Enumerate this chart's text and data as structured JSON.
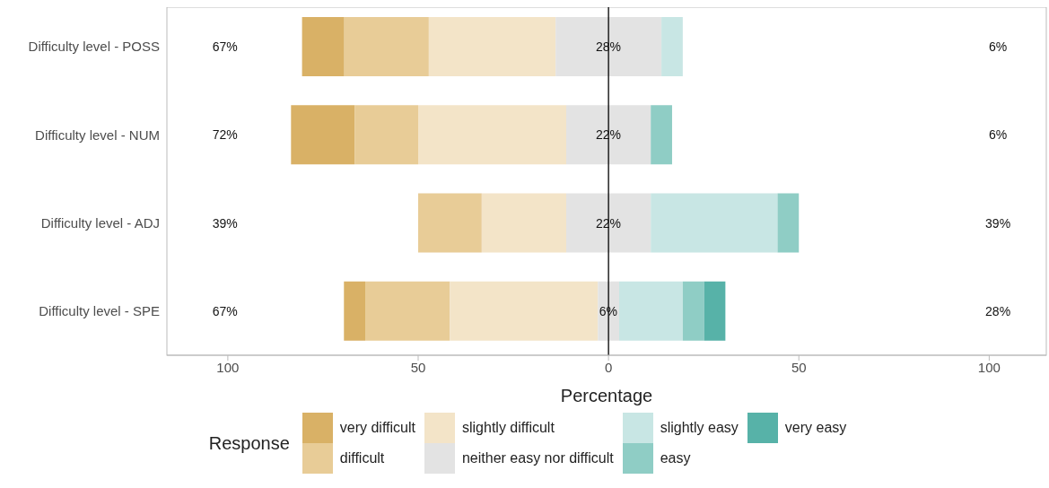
{
  "chart_data": {
    "type": "bar",
    "orientation": "horizontal",
    "xlabel": "Percentage",
    "legend_title": "Response",
    "legend": "bottom",
    "grid": false,
    "categories": [
      "Difficulty level - POSS",
      "Difficulty level - NUM",
      "Difficulty level - ADJ",
      "Difficulty level - SPE"
    ],
    "xlim": [
      -116,
      115
    ],
    "xticks": [
      {
        "value": -100,
        "label": "100"
      },
      {
        "value": -50,
        "label": "50"
      },
      0,
      50,
      100
    ],
    "series": [
      {
        "name": "very difficult",
        "color": "#d9b166",
        "values": [
          11.1,
          16.7,
          null,
          5.6
        ],
        "base": [
          -80.5,
          -83.4,
          null,
          -69.5
        ]
      },
      {
        "name": "difficult",
        "color": "#e8cc97",
        "values": [
          22.2,
          16.7,
          16.7,
          22.2
        ],
        "base": [
          -69.4,
          -66.7,
          -50.0,
          -63.9
        ]
      },
      {
        "name": "slightly difficult",
        "color": "#f3e4c8",
        "values": [
          33.3,
          38.9,
          22.2,
          38.9
        ],
        "base": [
          -47.2,
          -50.0,
          -33.3,
          -41.7
        ]
      },
      {
        "name": "neither easy nor difficult",
        "color": "#e3e3e3",
        "values": [
          27.8,
          22.2,
          22.2,
          5.6
        ],
        "base": [
          -13.9,
          -11.1,
          -11.1,
          -2.8
        ]
      },
      {
        "name": "slightly easy",
        "color": "#c8e6e4",
        "values": [
          5.6,
          null,
          33.3,
          16.7
        ],
        "base": [
          13.9,
          null,
          11.1,
          2.8
        ]
      },
      {
        "name": "easy",
        "color": "#8fcdc5",
        "values": [
          null,
          5.6,
          5.6,
          5.6
        ],
        "base": [
          null,
          11.1,
          44.4,
          19.5
        ]
      },
      {
        "name": "very easy",
        "color": "#57b2a8",
        "values": [
          null,
          null,
          null,
          5.6
        ],
        "base": [
          null,
          null,
          null,
          25.1
        ]
      }
    ],
    "ref_lines": [
      {
        "axis": "x",
        "value": 0,
        "color": "#000000"
      }
    ],
    "annotations": [
      "67%",
      "28%",
      "6%",
      "72%",
      "22%",
      "6%",
      "39%",
      "22%",
      "39%",
      "67%",
      "6%",
      "28%"
    ]
  }
}
